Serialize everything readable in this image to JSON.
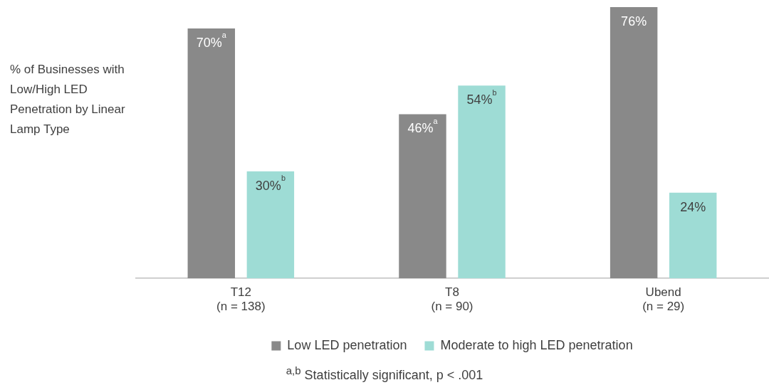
{
  "chart_data": {
    "type": "bar",
    "ylabel": "% of Businesses with Low/High LED Penetration by Linear Lamp Type",
    "categories": [
      "T12\n(n = 138)",
      "T8\n(n = 90)",
      "Ubend\n(n = 29)"
    ],
    "series": [
      {
        "name": "Low LED penetration",
        "color": "#898989",
        "values": [
          70,
          46,
          76
        ],
        "value_labels": [
          "70%$^{a}$",
          "46%$^{a}$",
          "76%"
        ]
      },
      {
        "name": "Moderate to high LED penetration",
        "color": "#9edcd5",
        "values": [
          30,
          54,
          24
        ],
        "value_labels": [
          "30%$^{b}$",
          "54%$^{b}$",
          "24%"
        ]
      }
    ],
    "legend": "bottom",
    "grid": false,
    "annotations": [
      "$^{a,b}$ Statistically significant, p < .001"
    ]
  }
}
